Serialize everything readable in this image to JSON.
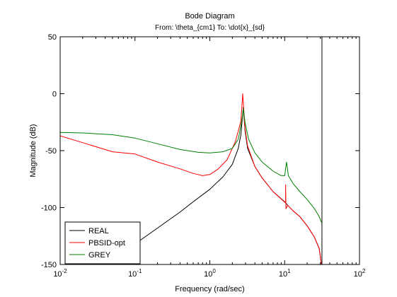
{
  "chart_data": {
    "type": "line",
    "title": "Bode Diagram",
    "subtitle": "From: \\theta_{cm1}  To: \\dot{x}_{sd}",
    "xlabel": "Frequency  (rad/sec)",
    "ylabel": "Magnitude (dB)",
    "xscale": "log",
    "xlim": [
      0.01,
      100
    ],
    "ylim": [
      -150,
      50
    ],
    "x_ticks": [
      {
        "base": "10",
        "exp": "-2"
      },
      {
        "base": "10",
        "exp": "-1"
      },
      {
        "base": "10",
        "exp": "0"
      },
      {
        "base": "10",
        "exp": "1"
      },
      {
        "base": "10",
        "exp": "2"
      }
    ],
    "y_ticks": [
      "50",
      "0",
      "-50",
      "-100",
      "-150"
    ],
    "grid": false,
    "legend_position": "bottom-left",
    "vertical_line_x": 31.5,
    "series": [
      {
        "name": "REAL",
        "color": "#000000",
        "points": [
          [
            0.03,
            -154
          ],
          [
            0.05,
            -145
          ],
          [
            0.1,
            -132
          ],
          [
            0.2,
            -118
          ],
          [
            0.4,
            -104
          ],
          [
            0.6,
            -95
          ],
          [
            1.0,
            -84
          ],
          [
            1.5,
            -73
          ],
          [
            2.0,
            -62
          ],
          [
            2.4,
            -48
          ],
          [
            2.6,
            -36
          ],
          [
            2.8,
            -12
          ],
          [
            2.95,
            -32
          ],
          [
            3.2,
            -48
          ],
          [
            4.0,
            -64
          ],
          [
            5.0,
            -74
          ],
          [
            7.0,
            -86
          ],
          [
            10.0,
            -95
          ],
          [
            11.0,
            -98
          ],
          [
            13.0,
            -103
          ],
          [
            16.0,
            -108
          ],
          [
            20.0,
            -116
          ],
          [
            25.0,
            -126
          ],
          [
            29.0,
            -136
          ],
          [
            31.0,
            -150
          ]
        ]
      },
      {
        "name": "PBSID-opt",
        "color": "#ff0000",
        "points": [
          [
            0.01,
            -37
          ],
          [
            0.02,
            -43
          ],
          [
            0.05,
            -51
          ],
          [
            0.1,
            -53
          ],
          [
            0.2,
            -60
          ],
          [
            0.4,
            -66
          ],
          [
            0.6,
            -70
          ],
          [
            0.8,
            -72
          ],
          [
            1.0,
            -71
          ],
          [
            1.3,
            -66
          ],
          [
            1.7,
            -58
          ],
          [
            2.2,
            -42
          ],
          [
            2.6,
            -24
          ],
          [
            2.75,
            0
          ],
          [
            2.95,
            -30
          ],
          [
            3.2,
            -46
          ],
          [
            4.0,
            -64
          ],
          [
            5.0,
            -74
          ],
          [
            7.0,
            -86
          ],
          [
            9.5,
            -94
          ],
          [
            10.3,
            -96
          ],
          [
            10.3,
            -80
          ],
          [
            10.4,
            -101
          ],
          [
            11.0,
            -98
          ],
          [
            13.0,
            -103
          ],
          [
            16.0,
            -108
          ],
          [
            20.0,
            -116
          ],
          [
            25.0,
            -126
          ],
          [
            29.0,
            -136
          ],
          [
            31.0,
            -150
          ]
        ]
      },
      {
        "name": "GREY",
        "color": "#008000",
        "points": [
          [
            0.01,
            -34
          ],
          [
            0.02,
            -34.5
          ],
          [
            0.05,
            -36
          ],
          [
            0.1,
            -39
          ],
          [
            0.2,
            -44
          ],
          [
            0.4,
            -49
          ],
          [
            0.7,
            -51.5
          ],
          [
            1.0,
            -52
          ],
          [
            1.5,
            -51
          ],
          [
            2.0,
            -48
          ],
          [
            2.4,
            -40
          ],
          [
            2.65,
            -25
          ],
          [
            2.8,
            -13
          ],
          [
            2.95,
            -25
          ],
          [
            3.3,
            -40
          ],
          [
            4.0,
            -52
          ],
          [
            5.0,
            -60
          ],
          [
            7.0,
            -68
          ],
          [
            9.0,
            -72
          ],
          [
            10.0,
            -72
          ],
          [
            10.6,
            -60
          ],
          [
            11.2,
            -72
          ],
          [
            13.0,
            -79
          ],
          [
            16.0,
            -86
          ],
          [
            20.0,
            -93
          ],
          [
            25.0,
            -101
          ],
          [
            29.0,
            -108
          ],
          [
            31.0,
            -113
          ]
        ]
      }
    ]
  }
}
